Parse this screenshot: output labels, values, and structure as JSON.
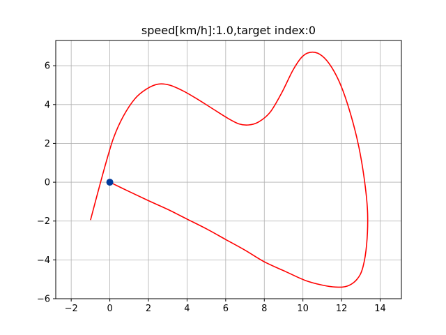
{
  "chart_data": {
    "type": "line",
    "title": "speed[km/h]:1.0,target index:0",
    "xlabel": "",
    "ylabel": "",
    "xlim": [
      -2.8,
      15.1
    ],
    "ylim": [
      -6.0,
      7.3
    ],
    "x_ticks": [
      -2,
      0,
      2,
      4,
      6,
      8,
      10,
      12,
      14
    ],
    "y_ticks": [
      -6,
      -4,
      -2,
      0,
      2,
      4,
      6
    ],
    "x_tick_labels": [
      "−2",
      "0",
      "2",
      "4",
      "6",
      "8",
      "10",
      "12",
      "14"
    ],
    "y_tick_labels": [
      "−6",
      "−4",
      "−2",
      "0",
      "2",
      "4",
      "6"
    ],
    "grid": true,
    "series": [
      {
        "color": "#ff0000",
        "points": [
          [
            -1.0,
            -1.95
          ],
          [
            -0.6,
            -0.45
          ],
          [
            -0.2,
            1.0
          ],
          [
            0.2,
            2.3
          ],
          [
            0.7,
            3.4
          ],
          [
            1.3,
            4.3
          ],
          [
            1.9,
            4.8
          ],
          [
            2.5,
            5.05
          ],
          [
            3.1,
            5.0
          ],
          [
            3.8,
            4.7
          ],
          [
            4.5,
            4.3
          ],
          [
            5.3,
            3.8
          ],
          [
            6.1,
            3.3
          ],
          [
            6.7,
            3.0
          ],
          [
            7.2,
            2.95
          ],
          [
            7.7,
            3.1
          ],
          [
            8.3,
            3.6
          ],
          [
            8.9,
            4.6
          ],
          [
            9.5,
            5.8
          ],
          [
            10.0,
            6.5
          ],
          [
            10.5,
            6.7
          ],
          [
            11.0,
            6.5
          ],
          [
            11.5,
            5.9
          ],
          [
            12.0,
            4.9
          ],
          [
            12.5,
            3.4
          ],
          [
            12.9,
            1.8
          ],
          [
            13.2,
            0.0
          ],
          [
            13.35,
            -1.6
          ],
          [
            13.3,
            -3.2
          ],
          [
            13.1,
            -4.4
          ],
          [
            12.8,
            -5.0
          ],
          [
            12.3,
            -5.35
          ],
          [
            11.7,
            -5.4
          ],
          [
            11.0,
            -5.3
          ],
          [
            10.1,
            -5.05
          ],
          [
            9.1,
            -4.6
          ],
          [
            8.0,
            -4.1
          ],
          [
            7.0,
            -3.5
          ],
          [
            6.0,
            -2.95
          ],
          [
            5.0,
            -2.4
          ],
          [
            4.0,
            -1.9
          ],
          [
            3.0,
            -1.4
          ],
          [
            2.0,
            -0.95
          ],
          [
            1.0,
            -0.48
          ],
          [
            0.0,
            0.0
          ]
        ]
      }
    ],
    "marker": {
      "x": 0.0,
      "y": 0.0,
      "color": "#003a9c"
    }
  }
}
